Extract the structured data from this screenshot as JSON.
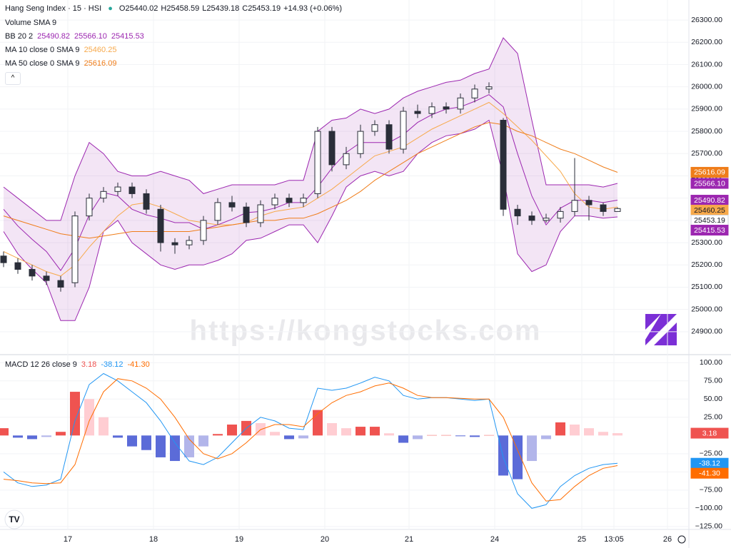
{
  "chart_data": [
    {
      "type": "candlestick",
      "title": "Hang Seng Index · 15 · HSI",
      "ohlc_prefixes": [
        "O",
        "H",
        "L",
        "C"
      ],
      "change": "+14.93 (+0.06%)",
      "indicator_label": "Volume SMA 9",
      "watermark": "https://kongstocks.com",
      "x": [
        0,
        1,
        2,
        3,
        4,
        5,
        6,
        7,
        8,
        9,
        10,
        11,
        12,
        13,
        14,
        15,
        16,
        17,
        18,
        19,
        20,
        21,
        22,
        23,
        24,
        25,
        26,
        27,
        28,
        29,
        30,
        31,
        32,
        33,
        34,
        35,
        36,
        37,
        38,
        39,
        40,
        41,
        42,
        43
      ],
      "open": [
        25240,
        25210,
        25180,
        25150,
        25130,
        25120,
        25420,
        25500,
        25530,
        25550,
        25520,
        25450,
        25300,
        25290,
        25310,
        25400,
        25480,
        25460,
        25390,
        25470,
        25500,
        25480,
        25520,
        25800,
        25650,
        25700,
        25800,
        25830,
        25720,
        25890,
        25880,
        25910,
        25900,
        25950,
        25990,
        25850,
        25450,
        25420,
        25400,
        25410,
        25440,
        25490,
        25470,
        25440.02
      ],
      "high": [
        25260,
        25230,
        25200,
        25170,
        25150,
        25440,
        25520,
        25550,
        25570,
        25570,
        25540,
        25470,
        25320,
        25330,
        25420,
        25500,
        25510,
        25480,
        25490,
        25520,
        25520,
        25520,
        25820,
        25820,
        25730,
        25830,
        25850,
        25850,
        25910,
        25920,
        25930,
        25930,
        25970,
        26010,
        26020,
        25860,
        25470,
        25440,
        25430,
        25460,
        25680,
        25510,
        25480,
        25458.59
      ],
      "low": [
        25190,
        25160,
        25130,
        25110,
        25080,
        25100,
        25400,
        25480,
        25510,
        25500,
        25430,
        25260,
        25250,
        25270,
        25290,
        25380,
        25440,
        25370,
        25370,
        25450,
        25460,
        25460,
        25500,
        25620,
        25630,
        25680,
        25780,
        25700,
        25700,
        25860,
        25860,
        25880,
        25880,
        25930,
        25970,
        25420,
        25380,
        25380,
        25390,
        25390,
        25420,
        25400,
        25420,
        25439.18
      ],
      "close": [
        25210,
        25180,
        25150,
        25130,
        25100,
        25420,
        25500,
        25530,
        25550,
        25520,
        25450,
        25300,
        25290,
        25310,
        25400,
        25480,
        25460,
        25390,
        25470,
        25500,
        25480,
        25500,
        25800,
        25650,
        25700,
        25800,
        25830,
        25720,
        25890,
        25880,
        25910,
        25900,
        25950,
        25990,
        26000,
        25450,
        25420,
        25400,
        25410,
        25440,
        25490,
        25470,
        25440,
        25453.19
      ],
      "up_color": "#ffffff",
      "down_color": "#2a2e39",
      "bb": {
        "label": "BB 20 2",
        "color": "#9c27b0",
        "fill": "rgba(156,39,176,0.12)",
        "basis": [
          25450,
          25375,
          25315,
          25260,
          25175,
          25275,
          25425,
          25525,
          25510,
          25450,
          25425,
          25410,
          25390,
          25390,
          25360,
          25380,
          25405,
          25435,
          25440,
          25455,
          25480,
          25480,
          25550,
          25635,
          25705,
          25750,
          25750,
          25750,
          25785,
          25840,
          25875,
          25900,
          25910,
          25935,
          25965,
          25910,
          25700,
          25510,
          25380,
          25455,
          25490,
          25490,
          25480,
          25490.82
        ],
        "upper": [
          25550,
          25500,
          25450,
          25400,
          25400,
          25600,
          25750,
          25700,
          25620,
          25600,
          25600,
          25620,
          25600,
          25580,
          25520,
          25540,
          25560,
          25560,
          25560,
          25560,
          25580,
          25580,
          25800,
          25850,
          25860,
          25900,
          25880,
          25900,
          25950,
          25980,
          26000,
          26020,
          26030,
          26060,
          26080,
          26220,
          26150,
          25850,
          25560,
          25560,
          25560,
          25560,
          25550,
          25566.1
        ],
        "lower": [
          25350,
          25250,
          25180,
          25120,
          24950,
          24950,
          25100,
          25350,
          25400,
          25300,
          25250,
          25200,
          25180,
          25200,
          25200,
          25220,
          25250,
          25310,
          25320,
          25350,
          25380,
          25380,
          25300,
          25420,
          25550,
          25600,
          25620,
          25600,
          25620,
          25700,
          25750,
          25780,
          25790,
          25810,
          25850,
          25600,
          25250,
          25170,
          25200,
          25350,
          25420,
          25420,
          25410,
          25415.53
        ]
      },
      "ma": [
        {
          "label": "MA 10 close 0 SMA 9",
          "color": "#f7a94b",
          "values": [
            25260,
            25230,
            25200,
            25170,
            25150,
            25200,
            25280,
            25350,
            25420,
            25470,
            25480,
            25460,
            25430,
            25400,
            25390,
            25380,
            25380,
            25390,
            25420,
            25440,
            25450,
            25460,
            25500,
            25540,
            25590,
            25640,
            25690,
            25710,
            25730,
            25770,
            25810,
            25840,
            25870,
            25900,
            25930,
            25880,
            25820,
            25760,
            25690,
            25620,
            25520,
            25460,
            25450,
            25460.25
          ]
        },
        {
          "label": "MA 50 close 0 SMA 9",
          "color": "#ef7d1a",
          "values": [
            25420,
            25400,
            25380,
            25360,
            25340,
            25330,
            25320,
            25330,
            25340,
            25350,
            25350,
            25350,
            25350,
            25350,
            25360,
            25370,
            25380,
            25390,
            25400,
            25400,
            25410,
            25410,
            25430,
            25460,
            25490,
            25530,
            25580,
            25620,
            25660,
            25700,
            25730,
            25760,
            25790,
            25820,
            25840,
            25830,
            25800,
            25780,
            25750,
            25720,
            25700,
            25670,
            25640,
            25616.09
          ]
        }
      ],
      "xlim": [
        -0.25,
        48
      ],
      "xticks": [
        {
          "value": 4.5,
          "label": "17"
        },
        {
          "value": 10.5,
          "label": "18"
        },
        {
          "value": 16.5,
          "label": "19"
        },
        {
          "value": 22.5,
          "label": "20"
        },
        {
          "value": 28.4,
          "label": "21"
        },
        {
          "value": 34.4,
          "label": "24"
        },
        {
          "value": 40.5,
          "label": "25"
        },
        {
          "value": 42.75,
          "label": "13:05"
        },
        {
          "value": 46.5,
          "label": "26"
        }
      ],
      "ylim": [
        24797,
        26390
      ],
      "yticks": [
        {
          "value": 24900,
          "label": "24900.00"
        },
        {
          "value": 25000,
          "label": "25000.00"
        },
        {
          "value": 25100,
          "label": "25100.00"
        },
        {
          "value": 25200,
          "label": "25200.00"
        },
        {
          "value": 25300,
          "label": "25300.00"
        },
        {
          "value": 25400,
          "label": "25400.00"
        },
        {
          "value": 25500,
          "label": "25500.00"
        },
        {
          "value": 25600,
          "label": "25600.00"
        },
        {
          "value": 25700,
          "label": "25700.00"
        },
        {
          "value": 25800,
          "label": "25800.00"
        },
        {
          "value": 25900,
          "label": "25900.00"
        },
        {
          "value": 26000,
          "label": "26000.00"
        },
        {
          "value": 26100,
          "label": "26100.00"
        },
        {
          "value": 26200,
          "label": "26200.00"
        },
        {
          "value": 26300,
          "label": "26300.00"
        }
      ],
      "grid": true
    },
    {
      "type": "macd",
      "label": "MACD 12 26 close 9",
      "macd": {
        "color": "#2196f3",
        "values": [
          -50,
          -65,
          -70,
          -68,
          -60,
          20,
          70,
          85,
          75,
          60,
          45,
          20,
          -10,
          -35,
          -40,
          -30,
          -10,
          10,
          25,
          20,
          10,
          8,
          65,
          62,
          65,
          72,
          80,
          75,
          55,
          50,
          52,
          52,
          50,
          48,
          50,
          -30,
          -80,
          -100,
          -95,
          -70,
          -55,
          -45,
          -40,
          -38.12
        ]
      },
      "signal": {
        "color": "#ff6d00",
        "values": [
          -60,
          -62,
          -65,
          -66,
          -65,
          -40,
          20,
          60,
          78,
          75,
          65,
          50,
          25,
          -5,
          -25,
          -32,
          -25,
          -10,
          8,
          15,
          15,
          12,
          30,
          45,
          55,
          60,
          68,
          72,
          65,
          55,
          52,
          52,
          51,
          50,
          50,
          25,
          -20,
          -65,
          -90,
          -88,
          -70,
          -55,
          -45,
          -41.3
        ]
      },
      "histogram": {
        "values": [
          10,
          -3,
          -5,
          -2,
          5,
          60,
          50,
          25,
          -3,
          -15,
          -20,
          -30,
          -35,
          -30,
          -15,
          2,
          15,
          20,
          17,
          5,
          -5,
          -4,
          35,
          17,
          10,
          12,
          12,
          3,
          -10,
          -5,
          0.5,
          0.5,
          -1,
          -2,
          0.5,
          -55,
          -60,
          -35,
          -5,
          18,
          15,
          10,
          5,
          3.18
        ],
        "colors": {
          "pos_up": "#ef5350",
          "pos_down": "#ffcdd2",
          "neg_down": "#5b6bd8",
          "neg_up": "#b2b5ea"
        }
      },
      "ylim": [
        -129,
        111
      ],
      "yticks": [
        {
          "value": 100,
          "label": "100.00"
        },
        {
          "value": 75,
          "label": "75.00"
        },
        {
          "value": 50,
          "label": "50.00"
        },
        {
          "value": 25,
          "label": "25.00"
        },
        {
          "value": -25,
          "label": "−25.00"
        },
        {
          "value": -50,
          "label": "−50.00"
        },
        {
          "value": -75,
          "label": "−75.00"
        },
        {
          "value": -100,
          "label": "−100.00"
        },
        {
          "value": -125,
          "label": "−125.00"
        }
      ],
      "grid": true
    }
  ]
}
